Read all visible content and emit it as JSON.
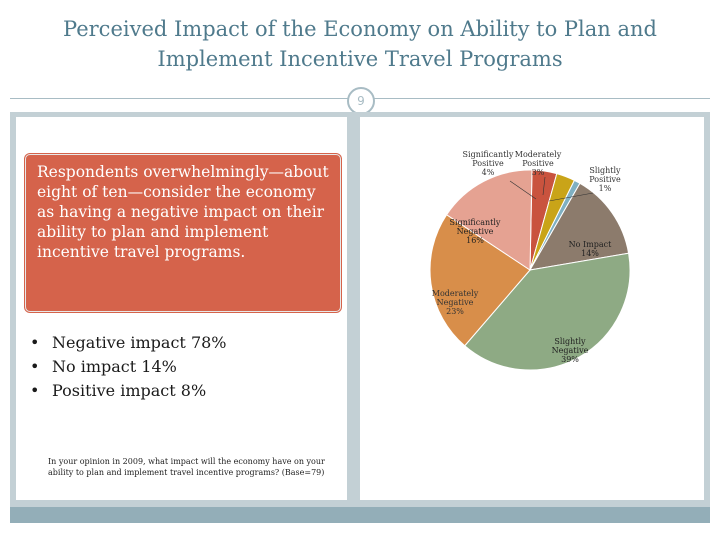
{
  "slide": {
    "title": "Perceived Impact of the Economy on Ability to Plan and Implement Incentive Travel Programs",
    "page_number": "9"
  },
  "callout": {
    "text": "Respondents overwhelmingly—about eight of ten—consider the economy as having a negative impact on their ability to plan and implement incentive travel programs."
  },
  "bullets": [
    {
      "bullet": "•",
      "text": "Negative impact 78%"
    },
    {
      "bullet": "•",
      "text": "No impact 14%"
    },
    {
      "bullet": "•",
      "text": "Positive impact 8%"
    }
  ],
  "footnote": "In your opinion in 2009, what impact will the economy have on your ability to plan and implement travel incentive programs? (Base=79)",
  "colors": {
    "title": "#4f7a8c",
    "panel_bg": "#c3d0d5",
    "callout": "#d5634b"
  },
  "chart_data": {
    "type": "pie",
    "slices": [
      {
        "label_lines": [
          "Significantly",
          "Positive"
        ],
        "value": 4,
        "value_label": "4%",
        "color": "#c9533e"
      },
      {
        "label_lines": [
          "Moderately",
          "Positive"
        ],
        "value": 3,
        "value_label": "3%",
        "color": "#c9a418"
      },
      {
        "label_lines": [
          "Slightly",
          "Positive"
        ],
        "value": 1,
        "value_label": "1%",
        "color": "#7fb0c2"
      },
      {
        "label_lines": [
          "No Impact"
        ],
        "value": 14,
        "value_label": "14%",
        "color": "#8c7b6c"
      },
      {
        "label_lines": [
          "Slightly",
          "Negative"
        ],
        "value": 39,
        "value_label": "39%",
        "color": "#8eaa84"
      },
      {
        "label_lines": [
          "Moderately",
          "Negative"
        ],
        "value": 23,
        "value_label": "23%",
        "color": "#d88e4a"
      },
      {
        "label_lines": [
          "Significantly",
          "Negative"
        ],
        "value": 16,
        "value_label": "16%",
        "color": "#e5a292"
      }
    ]
  }
}
